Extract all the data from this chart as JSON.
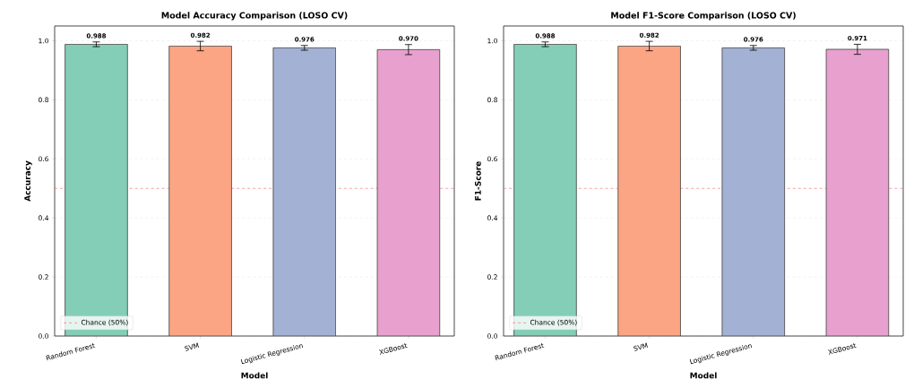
{
  "chart_data": [
    {
      "type": "bar",
      "title": "Model Accuracy Comparison (LOSO CV)",
      "xlabel": "Model",
      "ylabel": "Accuracy",
      "categories": [
        "Random Forest",
        "SVM",
        "Logistic Regression",
        "XGBoost"
      ],
      "values": [
        0.988,
        0.982,
        0.976,
        0.97
      ],
      "colors": [
        "#84cdb6",
        "#fba584",
        "#a3b1d5",
        "#e8a0ce"
      ],
      "errors": [
        0.008,
        0.016,
        0.008,
        0.017
      ],
      "value_labels": [
        "0.988",
        "0.982",
        "0.976",
        "0.970"
      ],
      "ylim": [
        0,
        1.05
      ],
      "yticks": [
        {
          "value": 0,
          "label": "0.0"
        },
        {
          "value": 0.2,
          "label": "0.2"
        },
        {
          "value": 0.4,
          "label": "0.4"
        },
        {
          "value": 0.6,
          "label": "0.6"
        },
        {
          "value": 0.8,
          "label": "0.8"
        },
        {
          "value": 1,
          "label": "1.0"
        }
      ],
      "grid": "y",
      "legend": "bottom left",
      "ref_lines": [
        {
          "axis": "y",
          "value": 0.5,
          "label": "Chance (50%)",
          "color": "#f06060",
          "line_style": "dashed"
        }
      ]
    },
    {
      "type": "bar",
      "title": "Model F1-Score Comparison (LOSO CV)",
      "xlabel": "Model",
      "ylabel": "F1-Score",
      "categories": [
        "Random Forest",
        "SVM",
        "Logistic Regression",
        "XGBoost"
      ],
      "values": [
        0.988,
        0.982,
        0.976,
        0.971
      ],
      "colors": [
        "#84cdb6",
        "#fba584",
        "#a3b1d5",
        "#e8a0ce"
      ],
      "errors": [
        0.008,
        0.016,
        0.008,
        0.017
      ],
      "value_labels": [
        "0.988",
        "0.982",
        "0.976",
        "0.971"
      ],
      "ylim": [
        0,
        1.05
      ],
      "yticks": [
        {
          "value": 0,
          "label": "0.0"
        },
        {
          "value": 0.2,
          "label": "0.2"
        },
        {
          "value": 0.4,
          "label": "0.4"
        },
        {
          "value": 0.6,
          "label": "0.6"
        },
        {
          "value": 0.8,
          "label": "0.8"
        },
        {
          "value": 1,
          "label": "1.0"
        }
      ],
      "grid": "y",
      "legend": "bottom left",
      "ref_lines": [
        {
          "axis": "y",
          "value": 0.5,
          "label": "Chance (50%)",
          "color": "#f06060",
          "line_style": "dashed"
        }
      ]
    }
  ]
}
